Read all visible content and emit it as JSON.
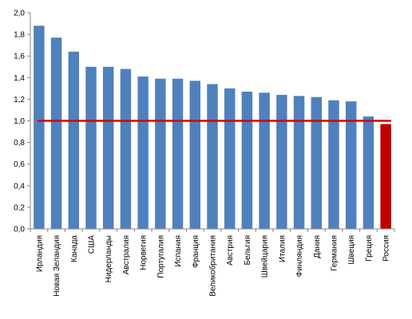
{
  "chart_data": {
    "type": "bar",
    "categories": [
      "Ирландия",
      "Новая Зеландия",
      "Канада",
      "США",
      "Нидерланды",
      "Австралия",
      "Норвегия",
      "Португалия",
      "Испания",
      "Франция",
      "Великобритания",
      "Австрия",
      "Бельгия",
      "Швейцария",
      "Италия",
      "Финляндия",
      "Дания",
      "Германия",
      "Швеция",
      "Греция",
      "Россия"
    ],
    "values": [
      1.88,
      1.77,
      1.64,
      1.5,
      1.5,
      1.48,
      1.41,
      1.39,
      1.39,
      1.37,
      1.34,
      1.3,
      1.27,
      1.26,
      1.24,
      1.23,
      1.22,
      1.19,
      1.18,
      1.04,
      0.97
    ],
    "ylim": [
      0,
      2.0
    ],
    "yticks": [
      "0,0",
      "0,2",
      "0,4",
      "0,6",
      "0,8",
      "1,0",
      "1,2",
      "1,4",
      "1,6",
      "1,8",
      "2,0"
    ],
    "ytick_values": [
      0,
      0.2,
      0.4,
      0.6,
      0.8,
      1.0,
      1.2,
      1.4,
      1.6,
      1.8,
      2.0
    ],
    "reference_line": 1.0,
    "highlight_category": "Россия",
    "grid": false,
    "legend": "none",
    "title": "",
    "xlabel": "",
    "ylabel": "",
    "colors": {
      "bar": "#4F81BD",
      "highlight_bar": "#C00000",
      "reference_line": "#E00000",
      "axis": "#868686"
    }
  }
}
